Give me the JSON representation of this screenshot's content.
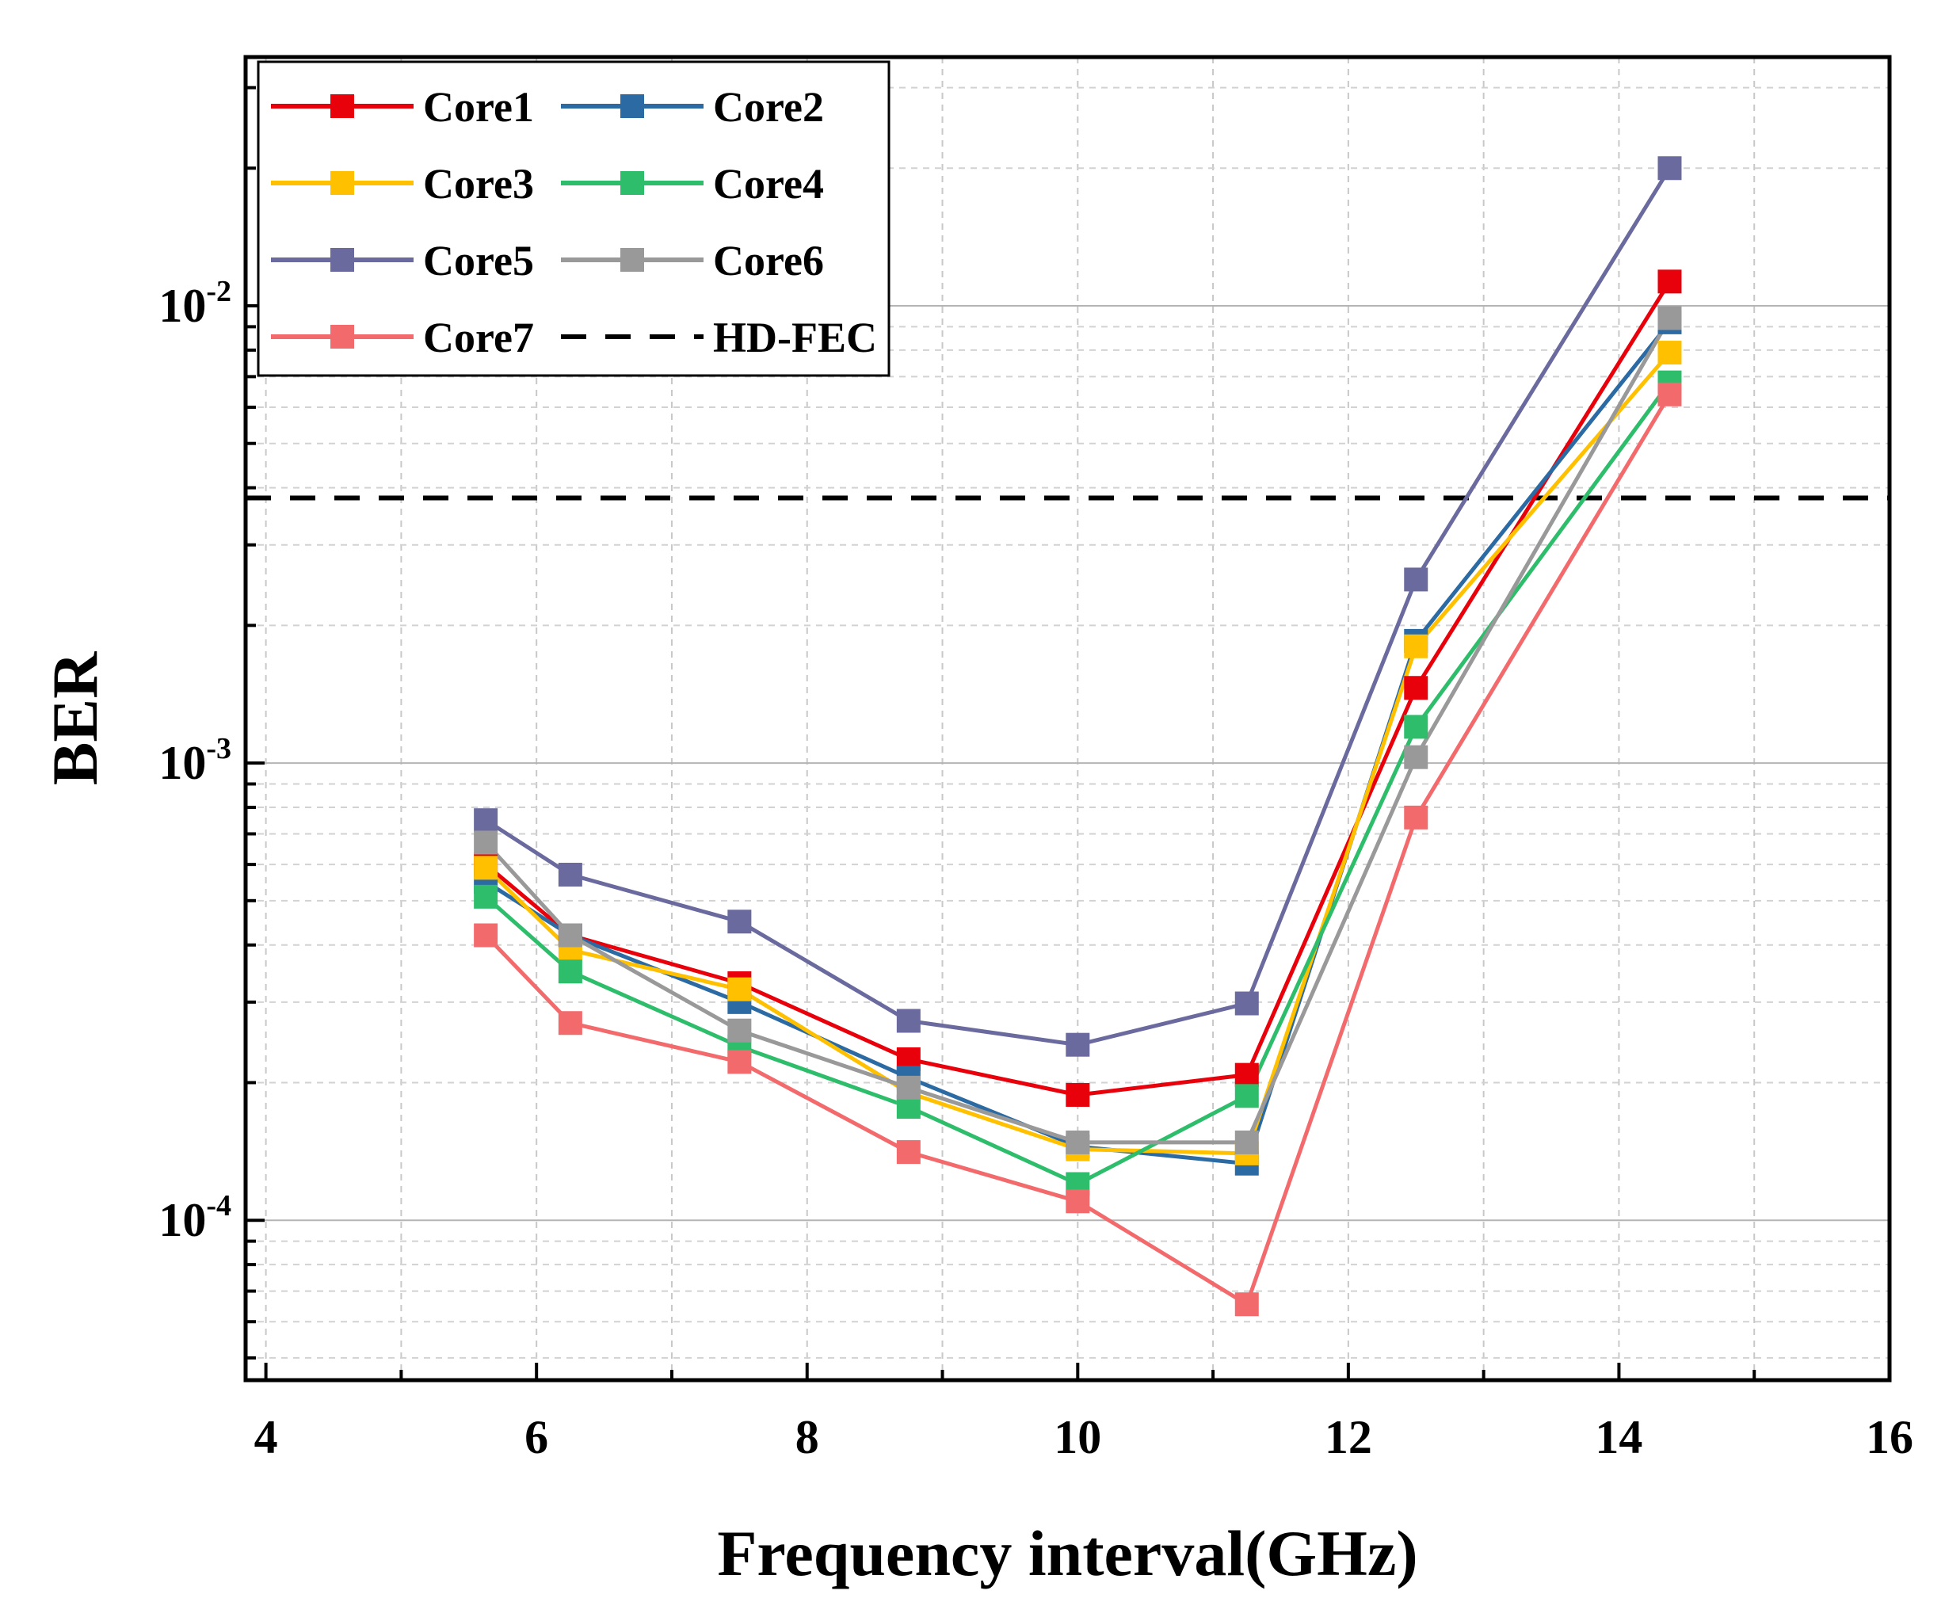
{
  "chart_data": {
    "type": "line",
    "xlabel": "Frequency interval(GHz)",
    "ylabel": "BER",
    "xscale": "linear",
    "yscale": "log",
    "xlim": [
      3.85,
      16
    ],
    "ylim": [
      4.47e-05,
      0.035
    ],
    "xticks": [
      4,
      6,
      8,
      10,
      12,
      14,
      16
    ],
    "xtick_labels": [
      "4",
      "6",
      "8",
      "10",
      "12",
      "14",
      "16"
    ],
    "yticks": [
      {
        "value": 0.01,
        "base": "10",
        "exp": "-2"
      },
      {
        "value": 0.001,
        "base": "10",
        "exp": "-3"
      },
      {
        "value": 0.0001,
        "base": "10",
        "exp": "-4"
      }
    ],
    "grid": true,
    "x": [
      5.625,
      6.25,
      7.5,
      8.75,
      10.0,
      11.25,
      12.5,
      14.375
    ],
    "series": [
      {
        "name": "Core1",
        "color": "#e8000b",
        "values": [
          0.0006,
          0.00042,
          0.00033,
          0.000225,
          0.000188,
          0.000208,
          0.00146,
          0.0113
        ]
      },
      {
        "name": "Core2",
        "color": "#2b6aa3",
        "values": [
          0.00055,
          0.00042,
          0.0003,
          0.000205,
          0.000145,
          0.000133,
          0.00185,
          0.0092
        ]
      },
      {
        "name": "Core3",
        "color": "#ffc000",
        "values": [
          0.00059,
          0.00039,
          0.00032,
          0.00019,
          0.000143,
          0.00014,
          0.0018,
          0.0079
        ]
      },
      {
        "name": "Core4",
        "color": "#2ebd6b",
        "values": [
          0.00051,
          0.00035,
          0.00024,
          0.000177,
          0.00012,
          0.000187,
          0.0012,
          0.0068
        ]
      },
      {
        "name": "Core5",
        "color": "#6a6a9e",
        "values": [
          0.00075,
          0.00057,
          0.00045,
          0.000273,
          0.000242,
          0.000298,
          0.00252,
          0.02
        ]
      },
      {
        "name": "Core6",
        "color": "#999999",
        "values": [
          0.00067,
          0.00042,
          0.00026,
          0.000195,
          0.000148,
          0.000148,
          0.00103,
          0.0094
        ]
      },
      {
        "name": "Core7",
        "color": "#f36a6d",
        "values": [
          0.00042,
          0.00027,
          0.000222,
          0.000141,
          0.00011,
          6.55e-05,
          0.00076,
          0.0064
        ]
      }
    ],
    "reference_lines": [
      {
        "name": "HD-FEC",
        "value": 0.0038,
        "color": "#000000",
        "style": "dashed"
      }
    ],
    "legend": {
      "position": "top-left",
      "columns": 2,
      "entries": [
        "Core1",
        "Core2",
        "Core3",
        "Core4",
        "Core5",
        "Core6",
        "Core7",
        "HD-FEC"
      ]
    }
  }
}
